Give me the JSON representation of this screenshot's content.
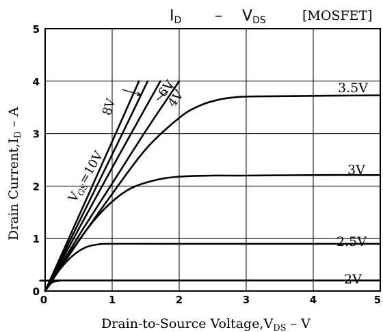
{
  "chart_data": {
    "type": "line",
    "title_main": "I",
    "title_main_sub": "D",
    "title_dash": "–",
    "title_vds": "V",
    "title_vds_sub": "DS",
    "title_tag": "[MOSFET]",
    "xlabel_pre": "Drain-to-Source Voltage,V",
    "xlabel_sub": "DS",
    "xlabel_post": " – V",
    "ylabel_pre": "Drain Current,I",
    "ylabel_sub": "D",
    "ylabel_post": " – A",
    "xlim": [
      0,
      5
    ],
    "ylim": [
      0,
      5
    ],
    "x_ticks": [
      "0",
      "1",
      "2",
      "3",
      "4",
      "5"
    ],
    "y_ticks": [
      "0",
      "1",
      "2",
      "3",
      "4",
      "5"
    ],
    "grid": true,
    "series": [
      {
        "name": "2V",
        "x": [
          0,
          0.1,
          0.2,
          0.3,
          5.0
        ],
        "y": [
          0,
          0.16,
          0.19,
          0.2,
          0.2
        ]
      },
      {
        "name": "2.5V",
        "x": [
          0,
          0.2,
          0.4,
          0.6,
          0.8,
          1.0,
          2.0,
          5.0
        ],
        "y": [
          0,
          0.38,
          0.66,
          0.83,
          0.89,
          0.9,
          0.9,
          0.9
        ]
      },
      {
        "name": "3V",
        "x": [
          0,
          0.4,
          0.8,
          1.2,
          1.6,
          2.0,
          2.5,
          3.0,
          4.0,
          5.0
        ],
        "y": [
          0,
          0.78,
          1.45,
          1.9,
          2.1,
          2.18,
          2.2,
          2.2,
          2.21,
          2.21
        ]
      },
      {
        "name": "3.5V",
        "x": [
          0,
          0.5,
          1.0,
          1.5,
          2.0,
          2.3,
          2.6,
          2.9,
          3.2,
          4.0,
          5.0
        ],
        "y": [
          0,
          0.95,
          1.85,
          2.7,
          3.3,
          3.53,
          3.65,
          3.7,
          3.71,
          3.72,
          3.73
        ]
      },
      {
        "name": "4V",
        "x": [
          0,
          0.5,
          1.0,
          1.5,
          2.0
        ],
        "y": [
          0,
          1.05,
          2.05,
          3.05,
          4.0
        ]
      },
      {
        "name": "6V",
        "x": [
          0,
          0.5,
          1.0,
          1.5,
          1.72
        ],
        "y": [
          0,
          1.18,
          2.35,
          3.5,
          4.0
        ]
      },
      {
        "name": "8V",
        "x": [
          0,
          0.5,
          1.0,
          1.53
        ],
        "y": [
          0,
          1.3,
          2.6,
          4.0
        ]
      },
      {
        "name": "10V",
        "x": [
          0,
          0.5,
          1.0,
          1.4
        ],
        "y": [
          0,
          1.42,
          2.85,
          4.0
        ]
      }
    ],
    "labels": {
      "l35": "3.5V",
      "l3": "3V",
      "l25": "2.5V",
      "l2": "2V",
      "l4": "4V",
      "l6": "6V",
      "l8": "8V",
      "vgs_pre": "V",
      "vgs_sub": "GS",
      "vgs_post": "=10V"
    }
  }
}
